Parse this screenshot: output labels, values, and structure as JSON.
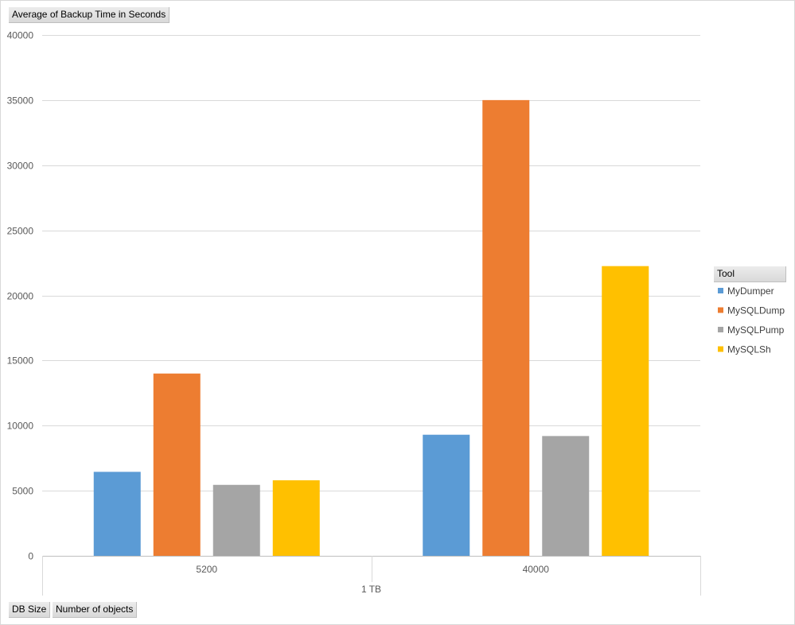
{
  "field_buttons": {
    "values": "Average of Backup Time in Seconds",
    "rows": [
      "DB Size",
      "Number of objects"
    ],
    "legend": "Tool"
  },
  "chart_data": {
    "type": "bar",
    "title": "",
    "xlabel": "",
    "ylabel": "",
    "ylim": [
      0,
      40000
    ],
    "yticks": [
      0,
      5000,
      10000,
      15000,
      20000,
      25000,
      30000,
      35000,
      40000
    ],
    "grid": true,
    "legend_position": "right",
    "group_label": "1 TB",
    "categories": [
      "5200",
      "40000"
    ],
    "series": [
      {
        "name": "MyDumper",
        "color": "#5b9bd5",
        "values": [
          6450,
          9300
        ]
      },
      {
        "name": "MySQLDump",
        "color": "#ed7d31",
        "values": [
          14000,
          35000
        ]
      },
      {
        "name": "MySQLPump",
        "color": "#a5a5a5",
        "values": [
          5450,
          9200
        ]
      },
      {
        "name": "MySQLSh",
        "color": "#ffc000",
        "values": [
          5800,
          22250
        ]
      }
    ]
  }
}
